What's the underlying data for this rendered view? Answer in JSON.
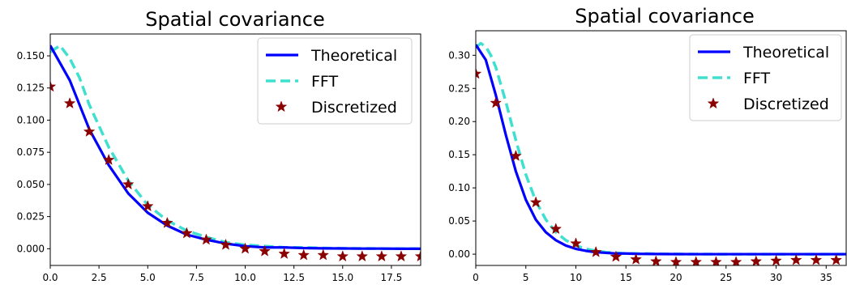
{
  "chart_data": [
    {
      "type": "line",
      "title": "Spatial covariance",
      "xlabel": "",
      "ylabel": "",
      "xlim": [
        0,
        19
      ],
      "ylim": [
        -0.013,
        0.167
      ],
      "x_ticks": [
        0,
        2.5,
        5,
        7.5,
        10,
        12.5,
        15,
        17.5
      ],
      "x_tick_labels": [
        "0.0",
        "2.5",
        "5.0",
        "7.5",
        "10.0",
        "12.5",
        "15.0",
        "17.5"
      ],
      "y_ticks": [
        0,
        0.025,
        0.05,
        0.075,
        0.1,
        0.125,
        0.15
      ],
      "y_tick_labels": [
        "0.000",
        "0.025",
        "0.050",
        "0.075",
        "0.100",
        "0.125",
        "0.150"
      ],
      "grid": false,
      "legend_position": "top-right",
      "series": [
        {
          "name": "Theoretical",
          "style": "solid-line",
          "color": "#0000ff",
          "x": [
            0,
            1,
            2,
            3,
            4,
            5,
            6,
            7,
            8,
            9,
            10,
            11,
            12,
            13,
            14,
            15,
            16,
            17,
            18,
            19
          ],
          "y": [
            0.158,
            0.131,
            0.093,
            0.065,
            0.043,
            0.028,
            0.018,
            0.011,
            0.007,
            0.004,
            0.002,
            0.001,
            0.001,
            0.0005,
            0.0003,
            0.0002,
            0.0001,
            0.0001,
            0.0,
            0.0
          ]
        },
        {
          "name": "FFT",
          "style": "dashed-line",
          "color": "#40e0d0",
          "x": [
            0,
            0.5,
            1,
            1.5,
            2,
            3,
            4,
            5,
            6,
            7,
            8,
            9,
            10,
            11,
            12,
            13,
            14,
            15,
            16,
            17,
            18,
            19
          ],
          "y": [
            0.153,
            0.158,
            0.148,
            0.133,
            0.112,
            0.079,
            0.053,
            0.034,
            0.022,
            0.014,
            0.009,
            0.005,
            0.003,
            0.002,
            0.001,
            0.001,
            0.0005,
            0.0003,
            0.0002,
            0.0001,
            0.0001,
            0.0
          ]
        },
        {
          "name": "Discretized",
          "style": "star-marker",
          "color": "#8b0000",
          "x": [
            0,
            1,
            2,
            3,
            4,
            5,
            6,
            7,
            8,
            9,
            10,
            11,
            12,
            13,
            14,
            15,
            16,
            17,
            18,
            19
          ],
          "y": [
            0.126,
            0.113,
            0.091,
            0.069,
            0.05,
            0.033,
            0.02,
            0.012,
            0.007,
            0.003,
            0.0,
            -0.002,
            -0.004,
            -0.005,
            -0.005,
            -0.006,
            -0.006,
            -0.006,
            -0.006,
            -0.006
          ]
        }
      ]
    },
    {
      "type": "line",
      "title": "Spatial covariance",
      "xlabel": "",
      "ylabel": "",
      "xlim": [
        0,
        37
      ],
      "ylim": [
        -0.017,
        0.337
      ],
      "x_ticks": [
        0,
        5,
        10,
        15,
        20,
        25,
        30,
        35
      ],
      "x_tick_labels": [
        "0",
        "5",
        "10",
        "15",
        "20",
        "25",
        "30",
        "35"
      ],
      "y_ticks": [
        0,
        0.05,
        0.1,
        0.15,
        0.2,
        0.25,
        0.3
      ],
      "y_tick_labels": [
        "0.00",
        "0.05",
        "0.10",
        "0.15",
        "0.20",
        "0.25",
        "0.30"
      ],
      "grid": false,
      "legend_position": "top-right",
      "series": [
        {
          "name": "Theoretical",
          "style": "solid-line",
          "color": "#0000ff",
          "x": [
            0,
            1,
            2,
            3,
            4,
            5,
            6,
            7,
            8,
            9,
            10,
            11,
            12,
            13,
            14,
            15,
            16,
            18,
            20,
            22,
            24,
            26,
            28,
            30,
            32,
            34,
            36,
            37
          ],
          "y": [
            0.316,
            0.293,
            0.24,
            0.18,
            0.125,
            0.082,
            0.052,
            0.033,
            0.021,
            0.013,
            0.008,
            0.005,
            0.003,
            0.002,
            0.001,
            0.001,
            0.0005,
            0.0002,
            0.0001,
            0.0,
            0.0,
            0.0,
            0.0,
            0.0,
            0.0,
            0.0,
            0.0,
            0.0
          ]
        },
        {
          "name": "FFT",
          "style": "dashed-line",
          "color": "#40e0d0",
          "x": [
            0,
            0.5,
            1,
            1.5,
            2,
            3,
            4,
            5,
            6,
            7,
            8,
            9,
            10,
            11,
            12,
            13,
            14,
            15,
            16,
            18,
            20,
            22,
            24,
            26,
            28,
            30,
            32,
            34,
            36,
            37
          ],
          "y": [
            0.312,
            0.318,
            0.313,
            0.3,
            0.282,
            0.23,
            0.172,
            0.12,
            0.08,
            0.052,
            0.033,
            0.021,
            0.013,
            0.008,
            0.005,
            0.003,
            0.002,
            0.001,
            0.001,
            0.0005,
            0.0002,
            0.0001,
            0.0,
            0.0,
            0.0,
            0.0,
            0.0,
            0.0,
            0.0,
            0.0
          ]
        },
        {
          "name": "Discretized",
          "style": "star-marker",
          "color": "#8b0000",
          "x": [
            0,
            2,
            4,
            6,
            8,
            10,
            12,
            14,
            16,
            18,
            20,
            22,
            24,
            26,
            28,
            30,
            32,
            34,
            36
          ],
          "y": [
            0.272,
            0.228,
            0.148,
            0.078,
            0.038,
            0.016,
            0.003,
            -0.004,
            -0.008,
            -0.011,
            -0.012,
            -0.012,
            -0.012,
            -0.012,
            -0.011,
            -0.01,
            -0.009,
            -0.009,
            -0.009
          ]
        }
      ]
    }
  ]
}
